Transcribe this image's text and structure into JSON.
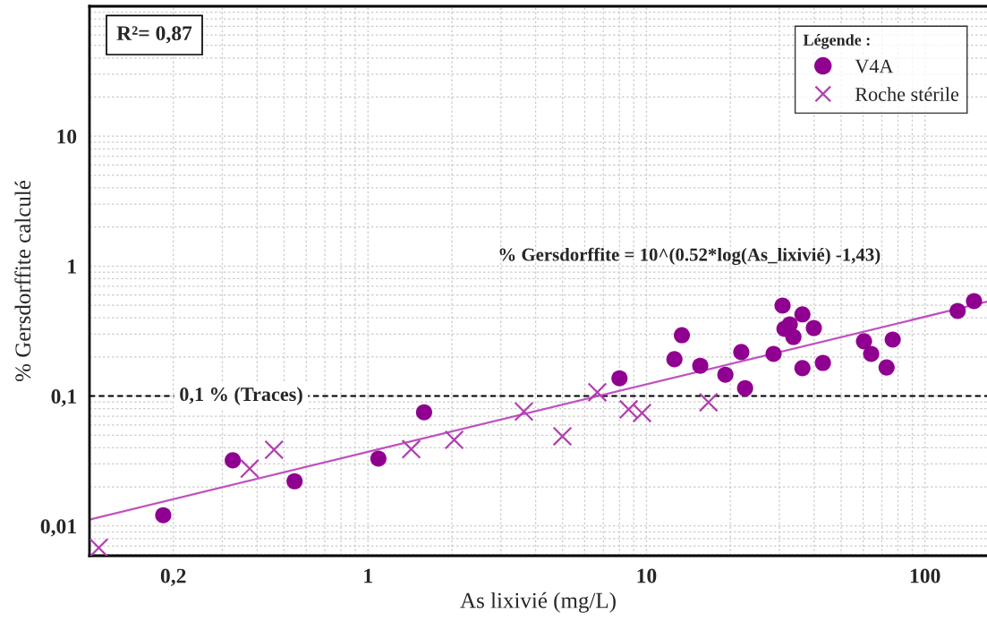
{
  "chart_data": {
    "type": "scatter",
    "xlabel": "As lixivié (mg/L)",
    "ylabel": "% Gersdorffite calculé",
    "legend_title": "Légende :",
    "log": "xy",
    "xlim": [
      0.1,
      167
    ],
    "ylim": [
      0.0059,
      100
    ],
    "xticks": [
      {
        "value": 0.2,
        "label": "0,2"
      },
      1,
      10,
      100
    ],
    "yticks": [
      {
        "value": 0.01,
        "label": "0,01"
      },
      {
        "value": 0.1,
        "label": "0,1"
      },
      1,
      10
    ],
    "grid": true,
    "legend": "top right",
    "series": [
      {
        "name": "V4A",
        "marker": "circle",
        "color": "#900090",
        "x": [
          0.184,
          0.327,
          0.545,
          1.09,
          1.59,
          8.0,
          12.6,
          13.4,
          15.6,
          19.2,
          21.9,
          22.6,
          28.6,
          30.8,
          31.3,
          32.7,
          33.7,
          36.3,
          39.9,
          36.3,
          43.0,
          60.4,
          64.1,
          76.6,
          72.8,
          131,
          150
        ],
        "values": [
          0.0121,
          0.032,
          0.0221,
          0.033,
          0.075,
          0.137,
          0.192,
          0.294,
          0.171,
          0.146,
          0.218,
          0.115,
          0.211,
          0.497,
          0.329,
          0.356,
          0.285,
          0.425,
          0.334,
          0.164,
          0.18,
          0.264,
          0.211,
          0.272,
          0.166,
          0.452,
          0.538
        ]
      },
      {
        "name": "Roche stérile",
        "marker": "cross",
        "color": "#b040b0",
        "x": [
          0.108,
          0.376,
          0.46,
          1.43,
          2.04,
          3.63,
          4.99,
          6.66,
          8.63,
          9.64,
          16.7
        ],
        "values": [
          0.0068,
          0.0276,
          0.0386,
          0.039,
          0.046,
          0.076,
          0.049,
          0.107,
          0.079,
          0.074,
          0.0895
        ]
      },
      {
        "type": "line",
        "line_style": "solid",
        "color": "#c050c0",
        "x": [
          0.1,
          1,
          167
        ],
        "values": [
          0.0112,
          0.0372,
          0.532
        ]
      }
    ],
    "ref_lines": [
      {
        "axis": "y",
        "value": 0.1,
        "label": "0,1 % (Traces)",
        "color": "#000000",
        "line_style": "dashed"
      }
    ],
    "annotations": [
      "R²= 0,87",
      "% Gersdorffite = 10^(0.52*log(As_lixivié) -1,43)"
    ]
  }
}
